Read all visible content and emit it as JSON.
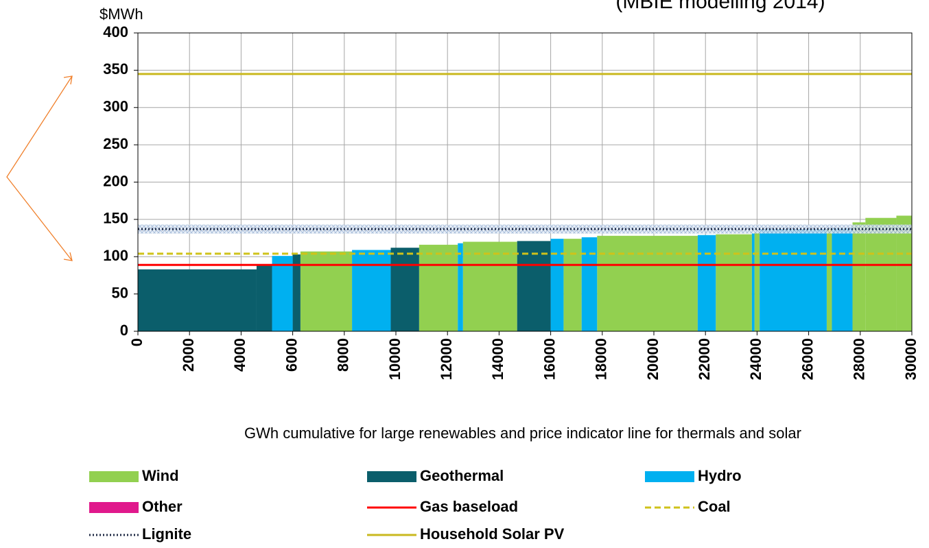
{
  "chart_data": {
    "type": "step",
    "title": "(MBIE modelling 2014)",
    "y_label": "$MWh",
    "x_label": "GWh cumulative for large renewables and price indicator line for thermals and solar",
    "xlim": [
      0,
      30000
    ],
    "xticks": [
      0,
      2000,
      4000,
      6000,
      8000,
      10000,
      12000,
      14000,
      16000,
      18000,
      20000,
      22000,
      24000,
      26000,
      28000,
      30000
    ],
    "ylim": [
      0,
      400
    ],
    "yticks": [
      0,
      50,
      100,
      150,
      200,
      250,
      300,
      350,
      400
    ],
    "grid": true,
    "series": [
      {
        "name": "Wind",
        "kind": "bar",
        "color": "#92d050",
        "x_start": [
          6300,
          10900,
          12600,
          16500,
          17800,
          22400,
          23900,
          26700,
          27700,
          28200,
          29400
        ],
        "x_end": [
          8300,
          12400,
          14700,
          17200,
          21700,
          23800,
          24100,
          26900,
          28200,
          29400,
          30000
        ],
        "values": [
          107,
          116,
          120,
          124,
          128,
          130,
          132,
          137,
          146,
          152,
          155
        ]
      },
      {
        "name": "Geothermal",
        "kind": "bar",
        "color": "#0b5e6b",
        "x_start": [
          0,
          4600,
          6000,
          9800,
          14700
        ],
        "x_end": [
          4600,
          5200,
          6300,
          10900,
          16000
        ],
        "values": [
          83,
          88,
          103,
          112,
          121
        ]
      },
      {
        "name": "Hydro",
        "kind": "bar",
        "color": "#00b0f0",
        "x_start": [
          5200,
          8300,
          12400,
          16000,
          17200,
          21700,
          23800,
          24100,
          26900
        ],
        "x_end": [
          6000,
          9800,
          12600,
          16500,
          17800,
          22400,
          23900,
          26700,
          27700
        ],
        "values": [
          101,
          109,
          118,
          124,
          126,
          129,
          131,
          137,
          138
        ]
      },
      {
        "name": "Other",
        "kind": "bar",
        "color": "#e0198c",
        "x_start": [],
        "x_end": [],
        "values": []
      },
      {
        "name": "Gas baseload",
        "kind": "line",
        "style": "solid",
        "color": "#ff0000",
        "values": [
          89
        ]
      },
      {
        "name": "Coal",
        "kind": "line",
        "style": "dashed",
        "color": "#cfc21a",
        "values": [
          104
        ]
      },
      {
        "name": "Lignite",
        "kind": "line",
        "style": "dotted",
        "color": "#1f2a44",
        "values": [
          137
        ],
        "band": [
          131,
          143
        ]
      },
      {
        "name": "Household Solar PV",
        "kind": "line",
        "style": "solid",
        "color": "#c9b81f",
        "values": [
          345
        ]
      }
    ]
  }
}
